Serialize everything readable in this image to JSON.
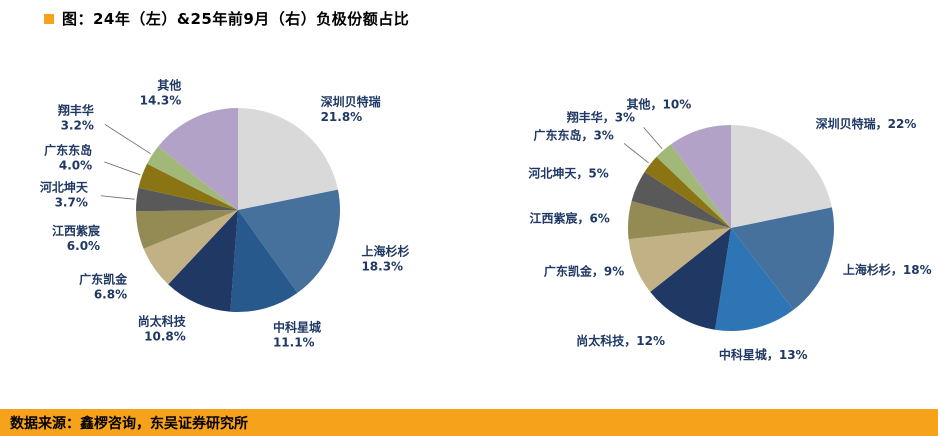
{
  "page": {
    "title": "图：24年（左）&25年前9月（右）负极份额占比",
    "source": "数据来源：鑫椤咨询，东吴证券研究所",
    "accent_color": "#f7a21b",
    "label_color": "#1f3864",
    "background_color": "#ffffff"
  },
  "chart_data": [
    {
      "type": "pie",
      "name": "24年负极份额占比（左图）",
      "unit": "%",
      "direction": "clockwise",
      "start_angle_deg": 0,
      "legend": "none",
      "categories": [
        "深圳贝特瑞",
        "上海杉杉",
        "中科星城",
        "尚太科技",
        "广东凯金",
        "江西紫宸",
        "河北坤天",
        "广东东岛",
        "翔丰华",
        "其他"
      ],
      "values": [
        21.8,
        18.3,
        11.1,
        10.8,
        6.8,
        6.0,
        3.7,
        4.0,
        3.2,
        14.3
      ],
      "colors": [
        "#d9d9d9",
        "#46719c",
        "#27598c",
        "#1f3864",
        "#c2b184",
        "#948a54",
        "#595959",
        "#8a7414",
        "#a2b878",
        "#b3a2c7"
      ],
      "display_labels": [
        [
          "深圳贝特瑞",
          "21.8%"
        ],
        [
          "上海杉杉",
          "18.3%"
        ],
        [
          "中科星城",
          "11.1%"
        ],
        [
          "尚太科技",
          "10.8%"
        ],
        [
          "广东凯金",
          "6.8%"
        ],
        [
          "江西紫宸",
          "6.0%"
        ],
        [
          "河北坤天",
          "3.7%"
        ],
        [
          "广东东岛",
          "4.0%"
        ],
        [
          "翔丰华",
          "3.2%"
        ],
        [
          "其他",
          "14.3%"
        ]
      ]
    },
    {
      "type": "pie",
      "name": "25年前9月负极份额占比（右图）",
      "unit": "%",
      "direction": "clockwise",
      "start_angle_deg": 0,
      "legend": "none",
      "categories": [
        "深圳贝特瑞",
        "上海杉杉",
        "中科星城",
        "尚太科技",
        "广东凯金",
        "江西紫宸",
        "河北坤天",
        "广东东岛",
        "翔丰华",
        "其他"
      ],
      "values": [
        22,
        18,
        13,
        12,
        9,
        6,
        5,
        3,
        3,
        10
      ],
      "colors": [
        "#d9d9d9",
        "#46719c",
        "#2e75b6",
        "#1f3864",
        "#c2b184",
        "#948a54",
        "#595959",
        "#8a7414",
        "#a2b878",
        "#b3a2c7"
      ],
      "display_labels": [
        "深圳贝特瑞，22%",
        "上海杉杉，18%",
        "中科星城，13%",
        "尚太科技，12%",
        "广东凯金，9%",
        "江西紫宸，6%",
        "河北坤天，5%",
        "广东东岛，3%",
        "翔丰华，3%",
        "其他，10%"
      ]
    }
  ]
}
